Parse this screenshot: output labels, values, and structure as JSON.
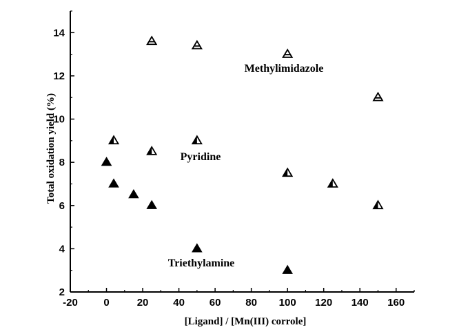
{
  "chart_data": {
    "type": "scatter",
    "title": "",
    "xlabel": "[Ligand] / [Mn(III) corrole]",
    "ylabel": "Total oxidation yield (%)",
    "xlim": [
      -20,
      170
    ],
    "ylim": [
      2,
      15
    ],
    "x_ticks": [
      -20,
      0,
      20,
      40,
      60,
      80,
      100,
      120,
      140,
      160
    ],
    "y_ticks": [
      2,
      4,
      6,
      8,
      10,
      12,
      14
    ],
    "grid": false,
    "legend": "none",
    "series": [
      {
        "name": "Methylimidazole",
        "marker": "open-triangle-mid-bar",
        "points": [
          [
            25,
            13.6
          ],
          [
            50,
            13.4
          ],
          [
            100,
            13.0
          ],
          [
            150,
            11.0
          ]
        ]
      },
      {
        "name": "Pyridine",
        "marker": "half-filled-triangle",
        "points": [
          [
            4,
            9.0
          ],
          [
            25,
            8.5
          ],
          [
            50,
            9.0
          ],
          [
            100,
            7.5
          ],
          [
            125,
            7.0
          ],
          [
            150,
            6.0
          ]
        ]
      },
      {
        "name": "Triethylamine",
        "marker": "filled-triangle",
        "points": [
          [
            0,
            8.0
          ],
          [
            4,
            7.0
          ],
          [
            15,
            6.5
          ],
          [
            25,
            6.0
          ],
          [
            50,
            4.0
          ],
          [
            100,
            3.0
          ]
        ]
      }
    ]
  }
}
